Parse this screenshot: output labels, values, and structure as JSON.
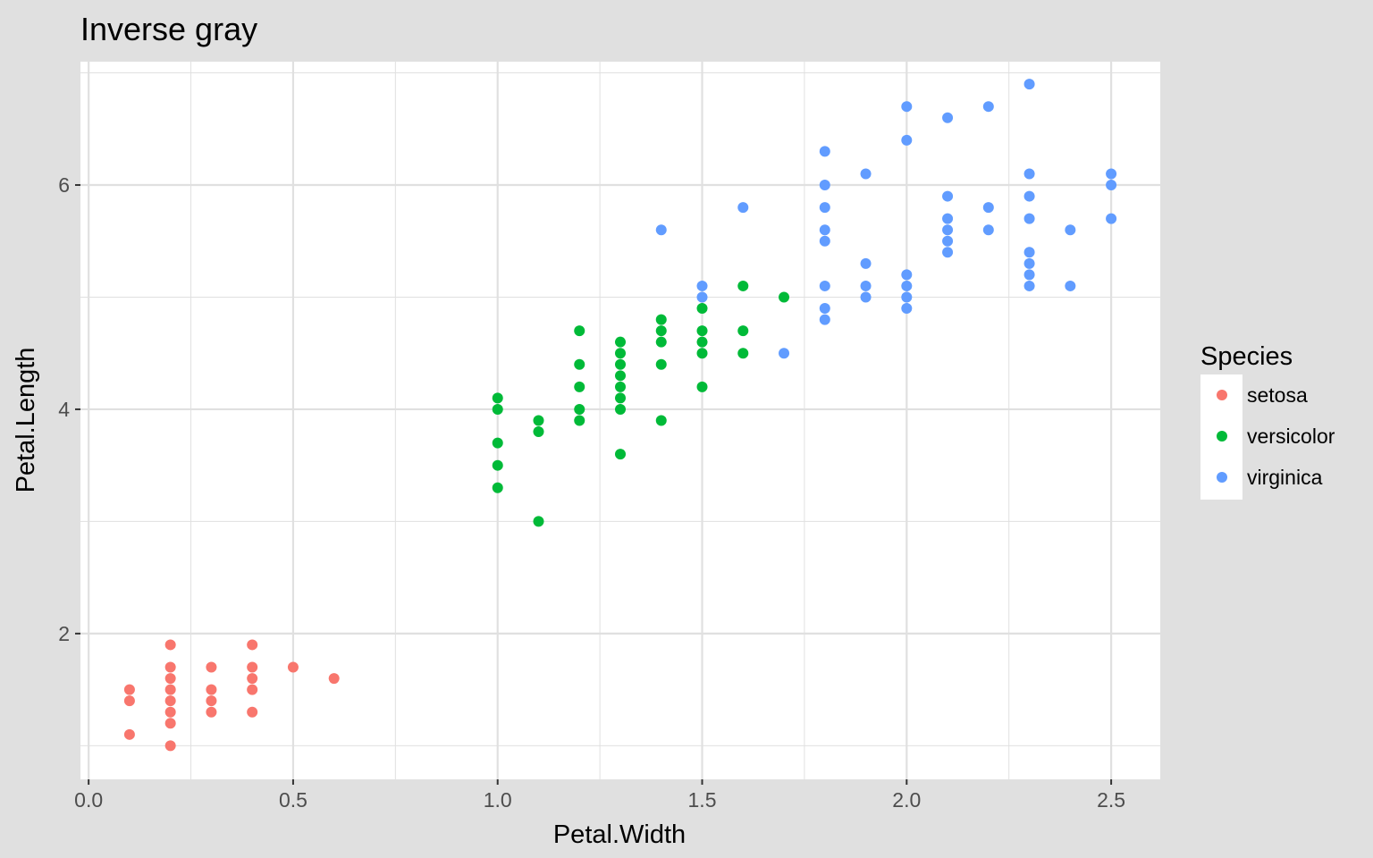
{
  "chart_data": {
    "type": "scatter",
    "title": "Inverse gray",
    "xlabel": "Petal.Width",
    "ylabel": "Petal.Length",
    "xlim": [
      -0.02,
      2.62
    ],
    "ylim": [
      0.7,
      7.1
    ],
    "x_ticks": [
      0.0,
      0.5,
      1.0,
      1.5,
      2.0,
      2.5
    ],
    "x_tick_labels": [
      "0.0",
      "0.5",
      "1.0",
      "1.5",
      "2.0",
      "2.5"
    ],
    "y_ticks": [
      2,
      4,
      6
    ],
    "y_tick_labels": [
      "2",
      "4",
      "6"
    ],
    "grid": true,
    "legend": {
      "title": "Species",
      "placement": "right"
    },
    "colors": {
      "panel_background": "#ffffff",
      "plot_background": "#e0e0e0",
      "grid": "#e0e0e0"
    },
    "series": [
      {
        "name": "setosa",
        "color": "#F8766D",
        "points": [
          [
            0.1,
            1.5
          ],
          [
            0.1,
            1.4
          ],
          [
            0.1,
            1.1
          ],
          [
            0.2,
            1.9
          ],
          [
            0.2,
            1.7
          ],
          [
            0.2,
            1.6
          ],
          [
            0.2,
            1.5
          ],
          [
            0.2,
            1.4
          ],
          [
            0.2,
            1.3
          ],
          [
            0.2,
            1.2
          ],
          [
            0.2,
            1.0
          ],
          [
            0.3,
            1.7
          ],
          [
            0.3,
            1.5
          ],
          [
            0.3,
            1.4
          ],
          [
            0.3,
            1.3
          ],
          [
            0.4,
            1.9
          ],
          [
            0.4,
            1.7
          ],
          [
            0.4,
            1.6
          ],
          [
            0.4,
            1.5
          ],
          [
            0.4,
            1.3
          ],
          [
            0.5,
            1.7
          ],
          [
            0.6,
            1.6
          ]
        ]
      },
      {
        "name": "versicolor",
        "color": "#00BA38",
        "points": [
          [
            1.0,
            4.1
          ],
          [
            1.0,
            4.0
          ],
          [
            1.0,
            3.7
          ],
          [
            1.0,
            3.5
          ],
          [
            1.0,
            3.3
          ],
          [
            1.1,
            3.9
          ],
          [
            1.1,
            3.8
          ],
          [
            1.1,
            3.0
          ],
          [
            1.2,
            4.7
          ],
          [
            1.2,
            4.4
          ],
          [
            1.2,
            4.2
          ],
          [
            1.2,
            4.0
          ],
          [
            1.2,
            3.9
          ],
          [
            1.3,
            4.6
          ],
          [
            1.3,
            4.5
          ],
          [
            1.3,
            4.4
          ],
          [
            1.3,
            4.3
          ],
          [
            1.3,
            4.2
          ],
          [
            1.3,
            4.1
          ],
          [
            1.3,
            4.0
          ],
          [
            1.3,
            3.6
          ],
          [
            1.4,
            4.8
          ],
          [
            1.4,
            4.7
          ],
          [
            1.4,
            4.6
          ],
          [
            1.4,
            4.4
          ],
          [
            1.4,
            3.9
          ],
          [
            1.5,
            4.9
          ],
          [
            1.5,
            4.7
          ],
          [
            1.5,
            4.6
          ],
          [
            1.5,
            4.5
          ],
          [
            1.5,
            4.2
          ],
          [
            1.6,
            5.1
          ],
          [
            1.6,
            4.7
          ],
          [
            1.6,
            4.5
          ],
          [
            1.7,
            5.0
          ]
        ]
      },
      {
        "name": "virginica",
        "color": "#619CFF",
        "points": [
          [
            1.4,
            5.6
          ],
          [
            1.5,
            5.1
          ],
          [
            1.5,
            5.0
          ],
          [
            1.6,
            5.8
          ],
          [
            1.7,
            4.5
          ],
          [
            1.8,
            6.3
          ],
          [
            1.8,
            6.0
          ],
          [
            1.8,
            5.8
          ],
          [
            1.8,
            5.6
          ],
          [
            1.8,
            5.5
          ],
          [
            1.8,
            5.1
          ],
          [
            1.8,
            4.9
          ],
          [
            1.8,
            4.8
          ],
          [
            1.9,
            6.1
          ],
          [
            1.9,
            5.3
          ],
          [
            1.9,
            5.1
          ],
          [
            1.9,
            5.0
          ],
          [
            2.0,
            6.7
          ],
          [
            2.0,
            6.4
          ],
          [
            2.0,
            5.2
          ],
          [
            2.0,
            5.1
          ],
          [
            2.0,
            5.0
          ],
          [
            2.0,
            4.9
          ],
          [
            2.1,
            6.6
          ],
          [
            2.1,
            5.9
          ],
          [
            2.1,
            5.7
          ],
          [
            2.1,
            5.6
          ],
          [
            2.1,
            5.5
          ],
          [
            2.1,
            5.4
          ],
          [
            2.2,
            6.7
          ],
          [
            2.2,
            5.8
          ],
          [
            2.2,
            5.6
          ],
          [
            2.3,
            6.9
          ],
          [
            2.3,
            6.1
          ],
          [
            2.3,
            5.9
          ],
          [
            2.3,
            5.7
          ],
          [
            2.3,
            5.4
          ],
          [
            2.3,
            5.3
          ],
          [
            2.3,
            5.2
          ],
          [
            2.3,
            5.1
          ],
          [
            2.4,
            5.6
          ],
          [
            2.4,
            5.1
          ],
          [
            2.5,
            6.1
          ],
          [
            2.5,
            6.0
          ],
          [
            2.5,
            5.7
          ]
        ]
      }
    ]
  }
}
